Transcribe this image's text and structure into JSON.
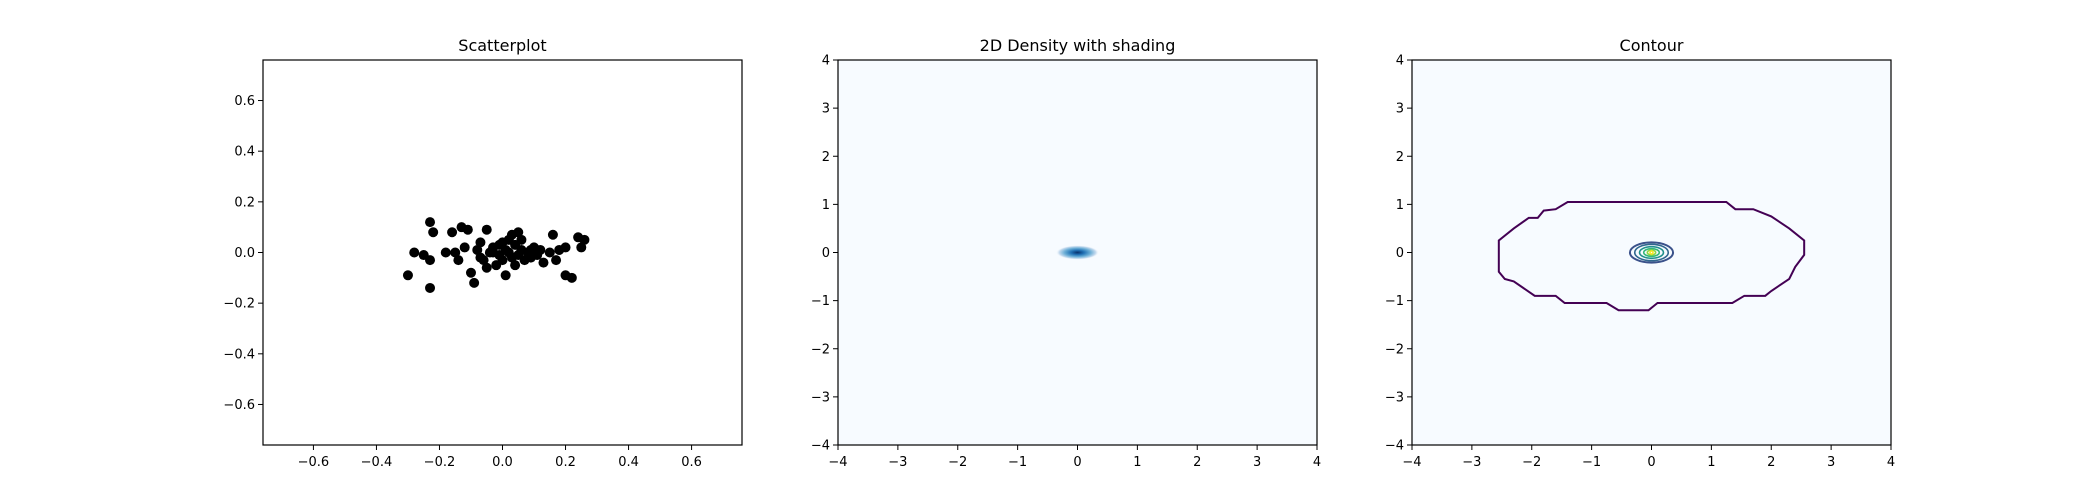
{
  "chart_data": [
    {
      "type": "scatter",
      "title": "Scatterplot",
      "xlabel": "",
      "ylabel": "",
      "xlim": [
        -0.76,
        0.76
      ],
      "ylim": [
        -0.76,
        0.76
      ],
      "xticks": [
        -0.6,
        -0.4,
        -0.2,
        0.0,
        0.2,
        0.4,
        0.6
      ],
      "yticks": [
        -0.6,
        -0.4,
        -0.2,
        0.0,
        0.2,
        0.4,
        0.6
      ],
      "xtick_labels": [
        "−0.6",
        "−0.4",
        "−0.2",
        "0.0",
        "0.2",
        "0.4",
        "0.6"
      ],
      "ytick_labels": [
        "−0.6",
        "−0.4",
        "−0.2",
        "0.0",
        "0.2",
        "0.4",
        "0.6"
      ],
      "marker_color": "#000000",
      "points": [
        [
          -0.3,
          -0.09
        ],
        [
          -0.28,
          0.0
        ],
        [
          -0.25,
          -0.01
        ],
        [
          -0.23,
          0.12
        ],
        [
          -0.22,
          0.08
        ],
        [
          -0.23,
          -0.14
        ],
        [
          -0.23,
          -0.03
        ],
        [
          -0.16,
          0.08
        ],
        [
          -0.15,
          0.0
        ],
        [
          -0.13,
          0.1
        ],
        [
          -0.14,
          -0.03
        ],
        [
          -0.12,
          0.02
        ],
        [
          -0.11,
          0.09
        ],
        [
          -0.1,
          -0.08
        ],
        [
          -0.09,
          -0.12
        ],
        [
          -0.08,
          0.01
        ],
        [
          -0.07,
          0.04
        ],
        [
          -0.06,
          -0.03
        ],
        [
          -0.05,
          0.09
        ],
        [
          -0.05,
          -0.06
        ],
        [
          -0.04,
          0.0
        ],
        [
          -0.03,
          0.02
        ],
        [
          -0.02,
          -0.05
        ],
        [
          -0.01,
          0.03
        ],
        [
          -0.01,
          -0.01
        ],
        [
          0.0,
          0.04
        ],
        [
          0.01,
          -0.09
        ],
        [
          0.01,
          0.01
        ],
        [
          0.02,
          0.0
        ],
        [
          0.03,
          0.07
        ],
        [
          0.03,
          -0.02
        ],
        [
          0.04,
          0.03
        ],
        [
          0.04,
          -0.05
        ],
        [
          0.05,
          0.08
        ],
        [
          0.05,
          -0.01
        ],
        [
          0.06,
          0.05
        ],
        [
          0.06,
          0.01
        ],
        [
          0.07,
          -0.03
        ],
        [
          0.08,
          0.0
        ],
        [
          0.09,
          -0.02
        ],
        [
          0.1,
          0.02
        ],
        [
          0.11,
          -0.01
        ],
        [
          0.12,
          0.01
        ],
        [
          0.13,
          -0.04
        ],
        [
          0.15,
          0.0
        ],
        [
          0.16,
          0.07
        ],
        [
          0.17,
          -0.03
        ],
        [
          0.18,
          0.01
        ],
        [
          0.2,
          0.02
        ],
        [
          0.2,
          -0.09
        ],
        [
          0.22,
          -0.1
        ],
        [
          0.24,
          0.06
        ],
        [
          0.25,
          0.02
        ],
        [
          0.26,
          0.05
        ],
        [
          -0.18,
          0.0
        ],
        [
          -0.07,
          -0.02
        ],
        [
          0.0,
          -0.03
        ],
        [
          0.02,
          0.05
        ],
        [
          0.09,
          0.01
        ],
        [
          -0.03,
          0.0
        ]
      ]
    },
    {
      "type": "heatmap",
      "title": "2D Density with shading",
      "xlabel": "",
      "ylabel": "",
      "xlim": [
        -4,
        4
      ],
      "ylim": [
        -4,
        4
      ],
      "xticks": [
        -4,
        -3,
        -2,
        -1,
        0,
        1,
        2,
        3,
        4
      ],
      "yticks": [
        -4,
        -3,
        -2,
        -1,
        0,
        1,
        2,
        3,
        4
      ],
      "xtick_labels": [
        "−4",
        "−3",
        "−2",
        "−1",
        "0",
        "1",
        "2",
        "3",
        "4"
      ],
      "ytick_labels": [
        "−4",
        "−3",
        "−2",
        "−1",
        "0",
        "1",
        "2",
        "3",
        "4"
      ],
      "colormap": "Blues",
      "background_color": "#f7fbff",
      "peak_color": "#08306b",
      "density_center": [
        0.0,
        0.0
      ],
      "density_spread": [
        0.12,
        0.05
      ]
    },
    {
      "type": "contour",
      "title": "Contour",
      "xlabel": "",
      "ylabel": "",
      "xlim": [
        -4,
        4
      ],
      "ylim": [
        -4,
        4
      ],
      "xticks": [
        -4,
        -3,
        -2,
        -1,
        0,
        1,
        2,
        3,
        4
      ],
      "yticks": [
        -4,
        -3,
        -2,
        -1,
        0,
        1,
        2,
        3,
        4
      ],
      "xtick_labels": [
        "−4",
        "−3",
        "−2",
        "−1",
        "0",
        "1",
        "2",
        "3",
        "4"
      ],
      "ytick_labels": [
        "−4",
        "−3",
        "−2",
        "−1",
        "0",
        "1",
        "2",
        "3",
        "4"
      ],
      "background_color": "#f7fbff",
      "outer_contour": {
        "color": "#440154",
        "points": [
          [
            -1.4,
            1.05
          ],
          [
            1.25,
            1.05
          ],
          [
            1.4,
            0.9
          ],
          [
            1.7,
            0.9
          ],
          [
            2.0,
            0.75
          ],
          [
            2.3,
            0.5
          ],
          [
            2.55,
            0.25
          ],
          [
            2.55,
            -0.05
          ],
          [
            2.4,
            -0.3
          ],
          [
            2.3,
            -0.55
          ],
          [
            2.0,
            -0.8
          ],
          [
            1.9,
            -0.9
          ],
          [
            1.55,
            -0.9
          ],
          [
            1.35,
            -1.05
          ],
          [
            0.1,
            -1.05
          ],
          [
            -0.05,
            -1.2
          ],
          [
            -0.55,
            -1.2
          ],
          [
            -0.75,
            -1.05
          ],
          [
            -1.45,
            -1.05
          ],
          [
            -1.6,
            -0.9
          ],
          [
            -1.95,
            -0.9
          ],
          [
            -2.3,
            -0.6
          ],
          [
            -2.45,
            -0.55
          ],
          [
            -2.55,
            -0.4
          ],
          [
            -2.55,
            0.25
          ],
          [
            -2.3,
            0.5
          ],
          [
            -2.05,
            0.72
          ],
          [
            -1.9,
            0.72
          ],
          [
            -1.8,
            0.87
          ],
          [
            -1.6,
            0.9
          ]
        ]
      },
      "inner_levels": [
        {
          "color": "#3b528b",
          "rx": 0.36,
          "ry": 0.21
        },
        {
          "color": "#31688e",
          "rx": 0.28,
          "ry": 0.17
        },
        {
          "color": "#21918c",
          "rx": 0.2,
          "ry": 0.12
        },
        {
          "color": "#35b779",
          "rx": 0.13,
          "ry": 0.08
        },
        {
          "color": "#90d743",
          "rx": 0.07,
          "ry": 0.05
        },
        {
          "color": "#fde725",
          "rx": 0.025,
          "ry": 0.03
        }
      ]
    }
  ]
}
